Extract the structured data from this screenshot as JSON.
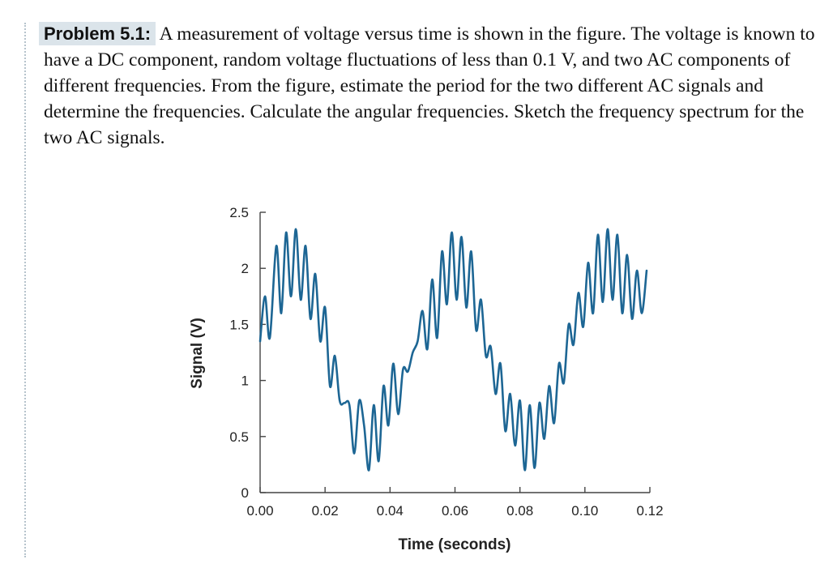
{
  "problem": {
    "label": "Problem 5.1:",
    "text": "A measurement of voltage versus time is shown in the figure. The voltage is known to have a DC component, random voltage fluctuations of less than 0.1 V, and two AC components of different frequencies. From the figure, estimate the period for the two different AC signals and determine the frequencies. Calculate the angular frequencies. Sketch the frequency spectrum for the two AC signals."
  },
  "chart_data": {
    "type": "line",
    "xlabel": "Time (seconds)",
    "ylabel": "Signal (V)",
    "xlim": [
      0,
      0.12
    ],
    "ylim": [
      0,
      2.5
    ],
    "xticks": [
      "0.00",
      "0.02",
      "0.04",
      "0.06",
      "0.08",
      "0.10",
      "0.12"
    ],
    "yticks": [
      "0",
      "0.5",
      "1",
      "1.5",
      "2",
      "2.5"
    ],
    "grid": false,
    "series_color": "#1d6694",
    "series": [
      {
        "x": [
          0.0,
          0.0015,
          0.003,
          0.005,
          0.0065,
          0.008,
          0.0095,
          0.011,
          0.0125,
          0.014,
          0.0155,
          0.017,
          0.0185,
          0.02,
          0.0215,
          0.023,
          0.0245,
          0.026,
          0.0275,
          0.029,
          0.0305,
          0.032,
          0.0335,
          0.035,
          0.0365,
          0.038,
          0.0395,
          0.041,
          0.0425,
          0.044,
          0.0455,
          0.047,
          0.0485,
          0.05,
          0.0515,
          0.053,
          0.0545,
          0.056,
          0.0575,
          0.059,
          0.0605,
          0.062,
          0.0635,
          0.065,
          0.0665,
          0.068,
          0.0695,
          0.071,
          0.0725,
          0.074,
          0.0755,
          0.077,
          0.0785,
          0.08,
          0.0815,
          0.083,
          0.0845,
          0.086,
          0.0875,
          0.089,
          0.0905,
          0.092,
          0.0935,
          0.095,
          0.0965,
          0.098,
          0.0995,
          0.101,
          0.1025,
          0.104,
          0.1055,
          0.107,
          0.1085,
          0.11,
          0.1115,
          0.113,
          0.1145,
          0.116,
          0.1175,
          0.119
        ],
        "y": [
          1.35,
          1.75,
          1.38,
          2.2,
          1.6,
          2.32,
          1.75,
          2.35,
          1.72,
          2.2,
          1.55,
          1.95,
          1.35,
          1.65,
          0.95,
          1.22,
          0.82,
          0.8,
          0.78,
          0.35,
          0.82,
          0.6,
          0.2,
          0.78,
          0.28,
          0.95,
          0.6,
          1.15,
          0.7,
          1.1,
          1.08,
          1.25,
          1.35,
          1.62,
          1.28,
          1.9,
          1.38,
          2.15,
          1.68,
          2.32,
          1.72,
          2.28,
          1.65,
          2.15,
          1.45,
          1.72,
          1.22,
          1.3,
          0.88,
          1.15,
          0.55,
          0.88,
          0.42,
          0.82,
          0.2,
          0.78,
          0.22,
          0.8,
          0.48,
          0.95,
          0.62,
          1.15,
          0.98,
          1.5,
          1.32,
          1.78,
          1.48,
          2.05,
          1.6,
          2.3,
          1.7,
          2.35,
          1.72,
          2.3,
          1.6,
          2.12,
          1.55,
          1.98,
          1.6,
          1.98
        ]
      }
    ]
  }
}
